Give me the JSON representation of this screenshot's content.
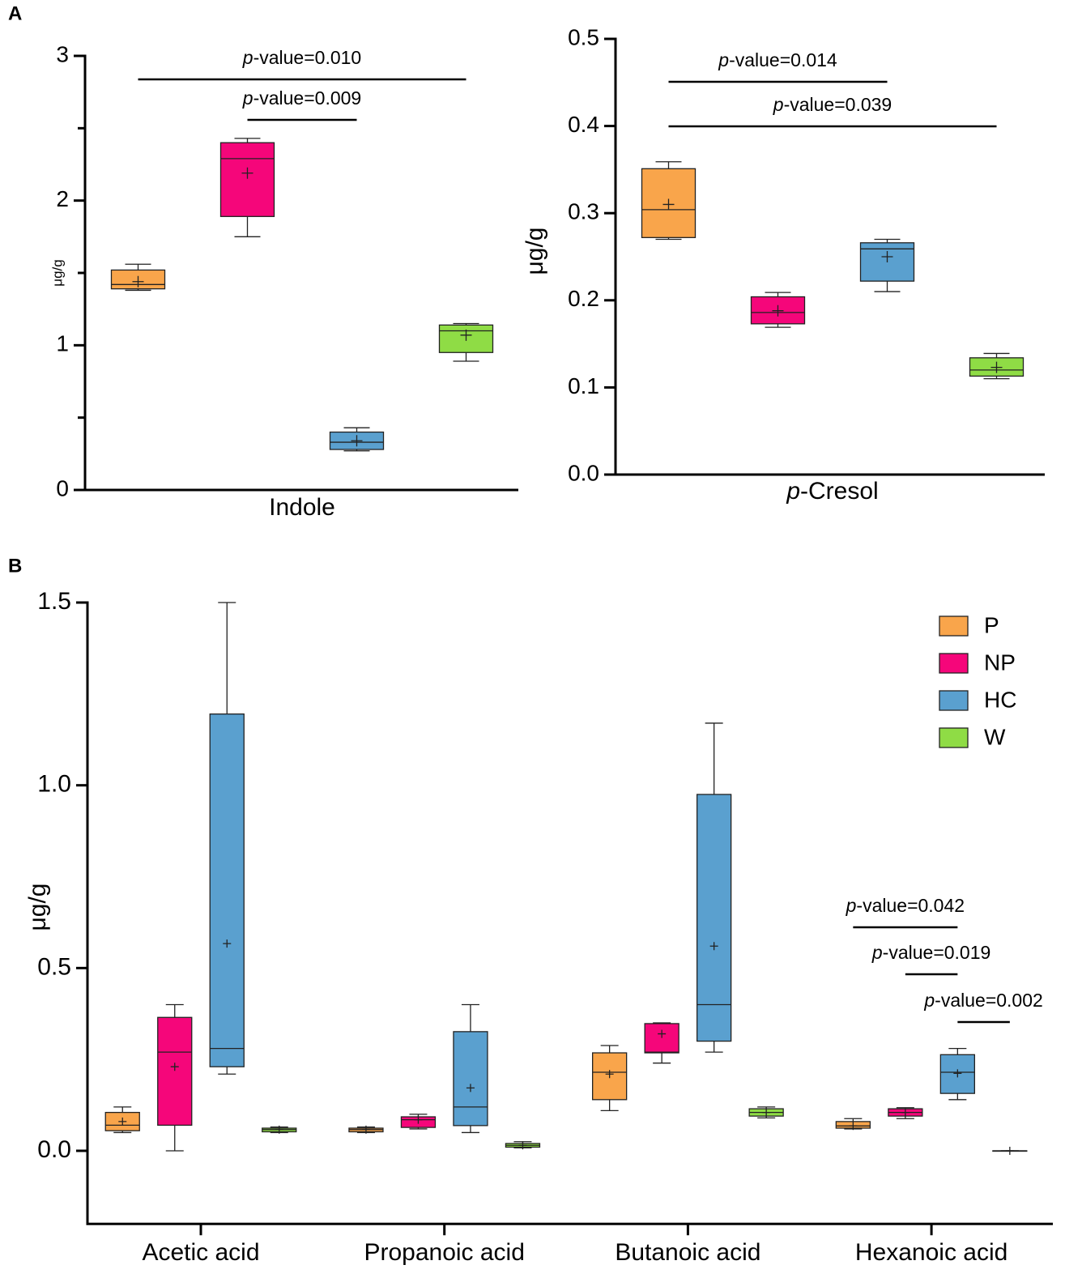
{
  "chart_data": [
    {
      "type": "box",
      "panel": "A",
      "ylabel": "μg/g",
      "categories": [
        "Indole"
      ],
      "ylim": [
        0,
        3
      ],
      "yticks": [
        0,
        1,
        2,
        3
      ],
      "minor_yticks": [
        0.5,
        1.5,
        2.5
      ],
      "series": [
        {
          "color": "#f9a54b",
          "min": [
            1.38
          ],
          "q1": [
            1.39
          ],
          "median": [
            1.42
          ],
          "q3": [
            1.52
          ],
          "max": [
            1.56
          ],
          "mean": [
            1.44
          ]
        },
        {
          "color": "#f5067a",
          "min": [
            1.75
          ],
          "q1": [
            1.89
          ],
          "median": [
            2.29
          ],
          "q3": [
            2.4
          ],
          "max": [
            2.43
          ],
          "mean": [
            2.19
          ]
        },
        {
          "color": "#5aa0cf",
          "min": [
            0.27
          ],
          "q1": [
            0.28
          ],
          "median": [
            0.33
          ],
          "q3": [
            0.4
          ],
          "max": [
            0.43
          ],
          "mean": [
            0.34
          ]
        },
        {
          "color": "#8fdc45",
          "min": [
            0.89
          ],
          "q1": [
            0.95
          ],
          "median": [
            1.1
          ],
          "q3": [
            1.14
          ],
          "max": [
            1.15
          ],
          "mean": [
            1.07
          ]
        }
      ],
      "annotations": [
        {
          "italic": "p",
          "text": "-value=0.010",
          "category": 0,
          "from": 0,
          "to": 3
        },
        {
          "italic": "p",
          "text": "-value=0.009",
          "category": 0,
          "from": 1,
          "to": 2
        }
      ]
    },
    {
      "type": "box",
      "ylabel": "μg/g",
      "categories": [
        {
          "italic": "p",
          "text": "-Cresol"
        }
      ],
      "ylim": [
        0,
        0.5
      ],
      "yticks": [
        {
          "value": 0,
          "label": "0.0"
        },
        0.1,
        0.2,
        0.3,
        0.4,
        0.5
      ],
      "series": [
        {
          "color": "#f9a54b",
          "min": [
            0.27
          ],
          "q1": [
            0.272
          ],
          "median": [
            0.304
          ],
          "q3": [
            0.351
          ],
          "max": [
            0.359
          ],
          "mean": [
            0.31
          ]
        },
        {
          "color": "#f5067a",
          "min": [
            0.169
          ],
          "q1": [
            0.173
          ],
          "median": [
            0.186
          ],
          "q3": [
            0.204
          ],
          "max": [
            0.209
          ],
          "mean": [
            0.188
          ]
        },
        {
          "color": "#5aa0cf",
          "min": [
            0.21
          ],
          "q1": [
            0.222
          ],
          "median": [
            0.259
          ],
          "q3": [
            0.266
          ],
          "max": [
            0.27
          ],
          "mean": [
            0.25
          ]
        },
        {
          "color": "#8fdc45",
          "min": [
            0.11
          ],
          "q1": [
            0.113
          ],
          "median": [
            0.12
          ],
          "q3": [
            0.134
          ],
          "max": [
            0.139
          ],
          "mean": [
            0.123
          ]
        }
      ],
      "annotations": [
        {
          "italic": "p",
          "text": "-value=0.014",
          "category": 0,
          "from": 0,
          "to": 2
        },
        {
          "italic": "p",
          "text": "-value=0.039",
          "category": 0,
          "from": 0,
          "to": 3
        }
      ]
    },
    {
      "type": "box",
      "panel": "B",
      "ylabel": "μg/g",
      "categories": [
        "Acetic acid",
        "Propanoic acid",
        "Butanoic acid",
        "Hexanoic acid"
      ],
      "ylim": [
        -0.2,
        1.5
      ],
      "yticks": [
        {
          "value": 0,
          "label": "0.0"
        },
        0.5,
        {
          "value": 1,
          "label": "1.0"
        },
        1.5
      ],
      "legend": "top-right",
      "series": [
        {
          "name": "P",
          "color": "#f9a54b",
          "min": [
            0.05,
            0.05,
            0.11,
            0.06
          ],
          "q1": [
            0.055,
            0.052,
            0.14,
            0.062
          ],
          "median": [
            0.07,
            0.058,
            0.215,
            0.068
          ],
          "q3": [
            0.105,
            0.062,
            0.268,
            0.08
          ],
          "max": [
            0.12,
            0.065,
            0.288,
            0.088
          ],
          "mean": [
            0.08,
            0.058,
            0.21,
            0.068
          ]
        },
        {
          "name": "NP",
          "color": "#f5067a",
          "min": [
            0,
            0.06,
            0.24,
            0.088
          ],
          "q1": [
            0.07,
            0.064,
            0.268,
            0.095
          ],
          "median": [
            0.27,
            0.085,
            0.27,
            0.105
          ],
          "q3": [
            0.365,
            0.093,
            0.348,
            0.115
          ],
          "max": [
            0.4,
            0.1,
            0.35,
            0.118
          ],
          "mean": [
            0.23,
            0.085,
            0.32,
            0.105
          ]
        },
        {
          "name": "HC",
          "color": "#5aa0cf",
          "min": [
            0.21,
            0.05,
            0.27,
            0.14
          ],
          "q1": [
            0.23,
            0.069,
            0.3,
            0.157
          ],
          "median": [
            0.28,
            0.12,
            0.4,
            0.215
          ],
          "q3": [
            1.195,
            0.326,
            0.975,
            0.263
          ],
          "max": [
            1.5,
            0.4,
            1.17,
            0.28
          ],
          "mean": [
            0.567,
            0.172,
            0.56,
            0.212
          ]
        },
        {
          "name": "W",
          "color": "#8fdc45",
          "min": [
            0.05,
            0.008,
            0.09,
            0
          ],
          "q1": [
            0.052,
            0.01,
            0.095,
            0
          ],
          "median": [
            0.058,
            0.015,
            0.105,
            0
          ],
          "q3": [
            0.062,
            0.02,
            0.115,
            0
          ],
          "max": [
            0.065,
            0.025,
            0.12,
            0
          ],
          "mean": [
            0.058,
            0.015,
            0.105,
            0
          ]
        }
      ],
      "annotations": [
        {
          "italic": "p",
          "text": "-value=0.042",
          "category": 3,
          "from": 0,
          "to": 2
        },
        {
          "italic": "p",
          "text": "-value=0.019",
          "category": 3,
          "from": 1,
          "to": 2
        },
        {
          "italic": "p",
          "text": "-value=0.002",
          "category": 3,
          "from": 2,
          "to": 3
        }
      ]
    }
  ]
}
